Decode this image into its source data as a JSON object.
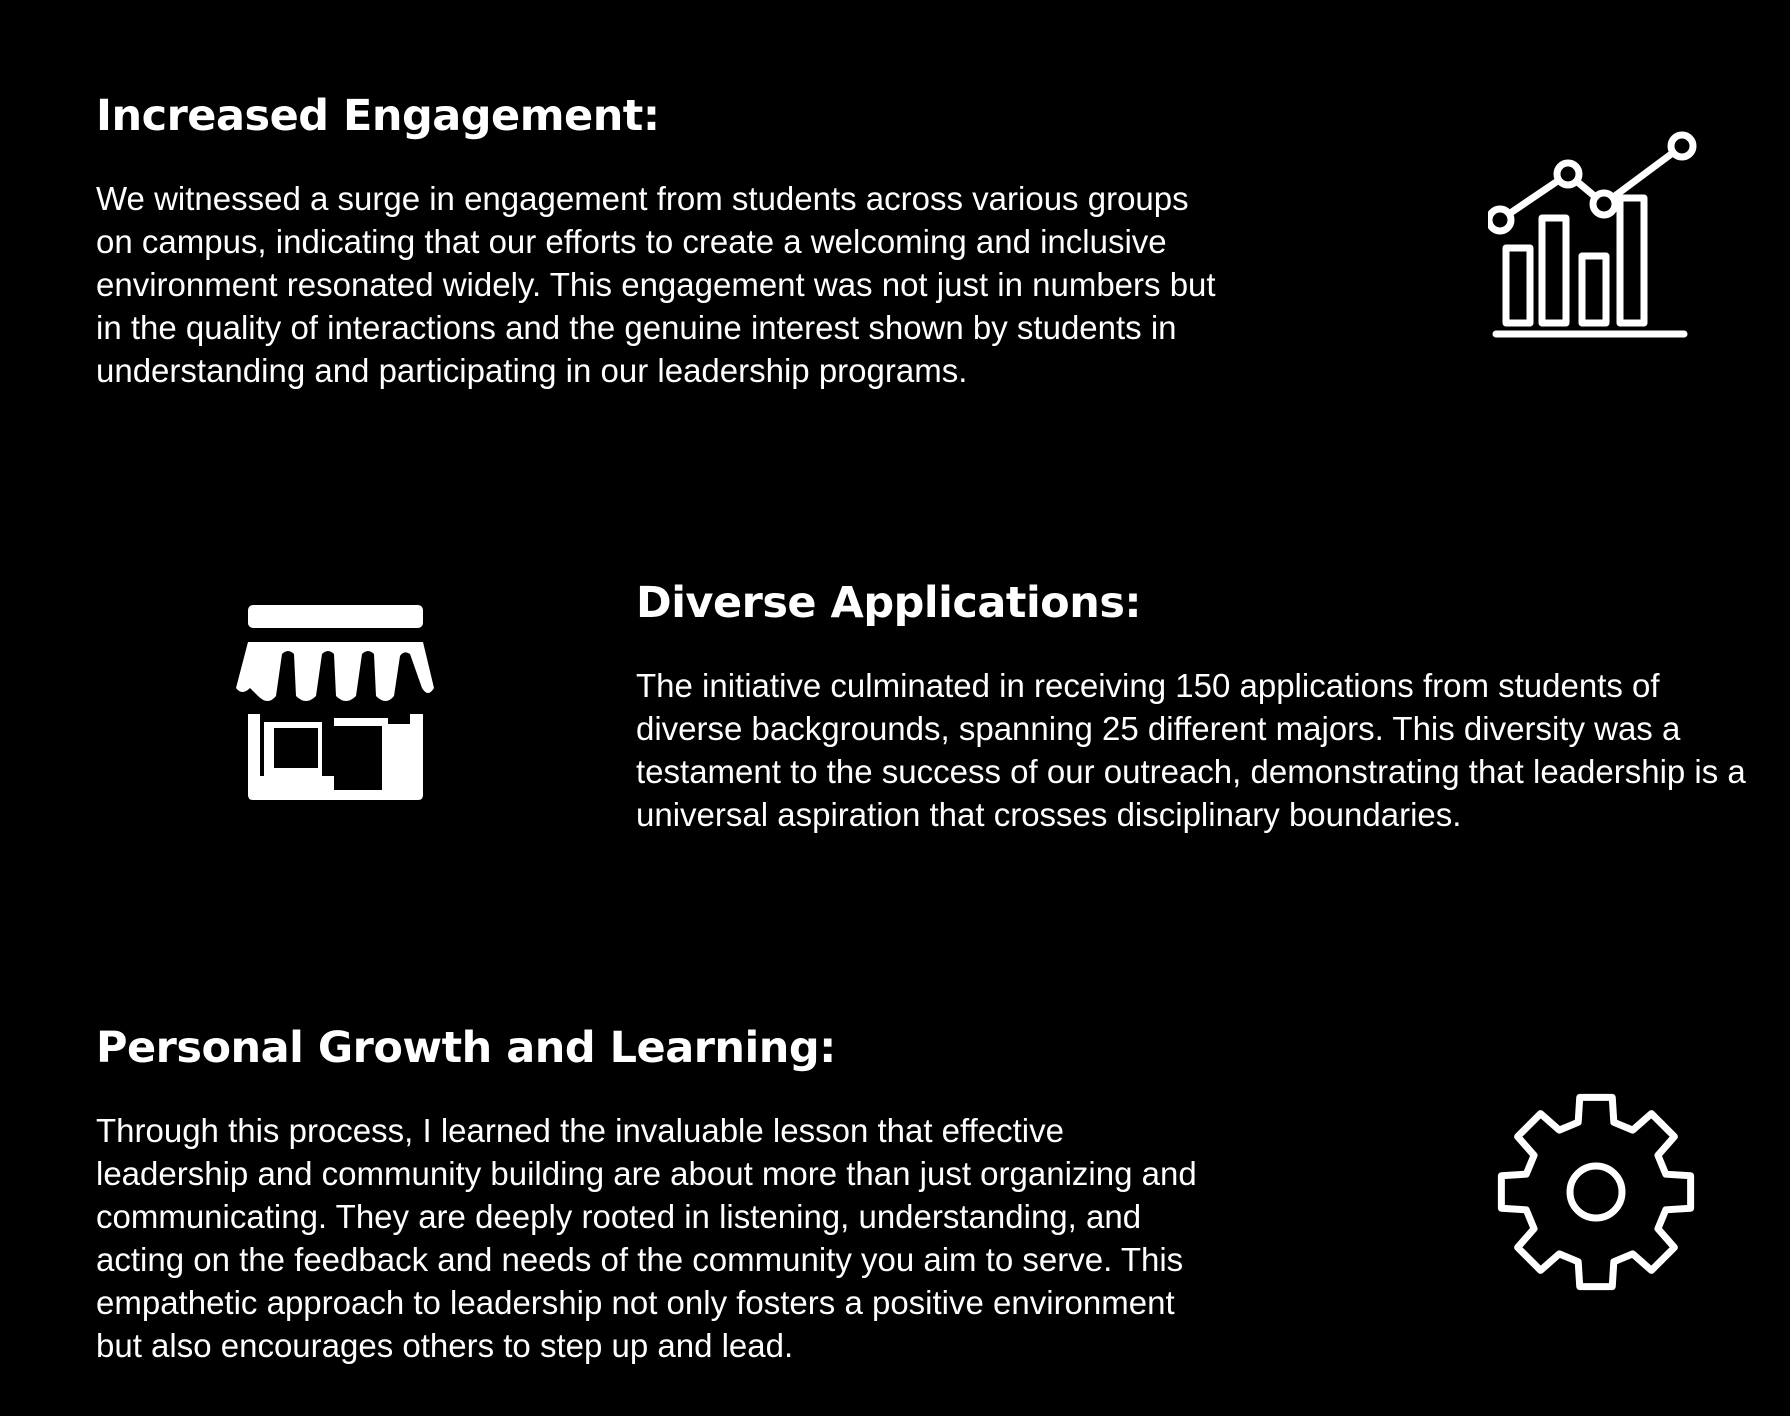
{
  "sections": [
    {
      "heading": "Increased Engagement:",
      "icon": "bar-chart-trend-icon",
      "lines": [
        "We witnessed a surge in engagement from students across various groups",
        "on campus, indicating that our efforts to create a welcoming and inclusive",
        "environment resonated widely. This engagement was not just in numbers but",
        "in the quality of interactions and the genuine interest shown by students in",
        "understanding and participating in our leadership programs."
      ]
    },
    {
      "heading": "Diverse Applications:",
      "icon": "storefront-icon",
      "lines": [
        "The initiative culminated in receiving 150 applications from students of",
        "diverse backgrounds, spanning 25 different majors. This diversity was a",
        "testament to the success of our outreach, demonstrating that leadership is a",
        "universal aspiration that crosses disciplinary boundaries."
      ]
    },
    {
      "heading": "Personal Growth and Learning:",
      "icon": "gear-icon",
      "lines": [
        "Through this process, I learned the invaluable lesson that effective",
        "leadership and community building are about more than just organizing and",
        "communicating. They are deeply rooted in listening, understanding, and",
        "acting on the feedback and needs of the community you aim to serve. This",
        "empathetic approach to leadership not only fosters a positive environment",
        "but also encourages others to step up and lead."
      ]
    }
  ],
  "colors": {
    "background": "#000000",
    "text": "#ffffff"
  }
}
